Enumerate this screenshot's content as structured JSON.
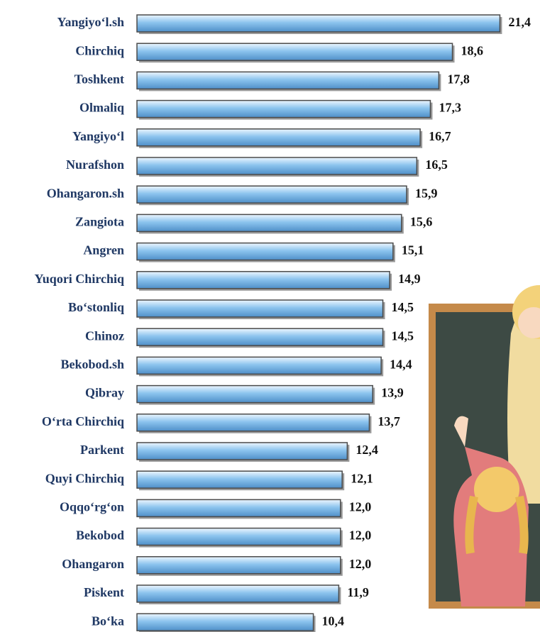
{
  "chart_data": {
    "type": "hbar",
    "categories": [
      "Yangiyo‘l.sh",
      "Chirchiq",
      "Toshkent",
      "Olmaliq",
      "Yangiyo‘l",
      "Nurafshon",
      "Ohangaron.sh",
      "Zangiota",
      "Angren",
      "Yuqori Chirchiq",
      "Bo‘stonliq",
      "Chinoz",
      "Bekobod.sh",
      "Qibray",
      "O‘rta Chirchiq",
      "Parkent",
      "Quyi Chirchiq",
      "Oqqo‘rg‘on",
      "Bekobod",
      "Ohangaron",
      "Piskent",
      "Bo‘ka"
    ],
    "values": [
      21.4,
      18.6,
      17.8,
      17.3,
      16.7,
      16.5,
      15.9,
      15.6,
      15.1,
      14.9,
      14.5,
      14.5,
      14.4,
      13.9,
      13.7,
      12.4,
      12.1,
      12.0,
      12.0,
      12.0,
      11.9,
      10.4
    ],
    "value_labels": [
      "21,4",
      "18,6",
      "17,8",
      "17,3",
      "16,7",
      "16,5",
      "15,9",
      "15,6",
      "15,1",
      "14,9",
      "14,5",
      "14,5",
      "14,4",
      "13,9",
      "13,7",
      "12,4",
      "12,1",
      "12,0",
      "12,0",
      "12,0",
      "11,9",
      "10,4"
    ],
    "color": "#8cc4ee"
  }
}
